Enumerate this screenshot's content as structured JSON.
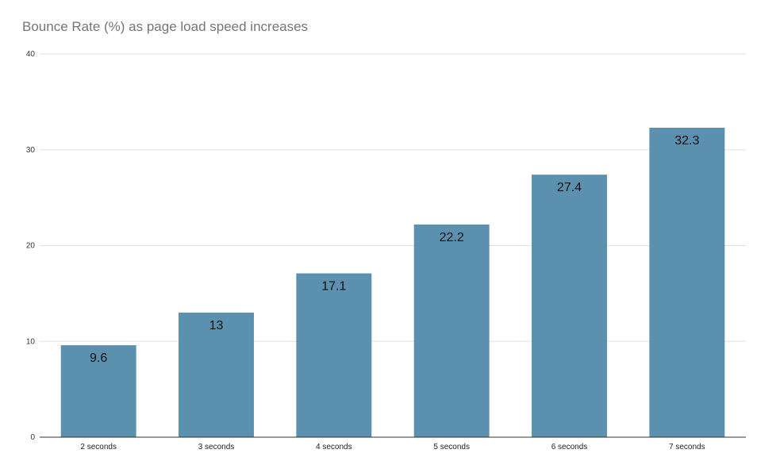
{
  "chart_data": {
    "type": "bar",
    "title": "Bounce Rate (%) as page load speed increases",
    "xlabel": "",
    "ylabel": "",
    "categories": [
      "2 seconds",
      "3 seconds",
      "4 seconds",
      "5 seconds",
      "6 seconds",
      "7 seconds"
    ],
    "values": [
      9.6,
      13,
      17.1,
      22.2,
      27.4,
      32.3
    ],
    "ylim": [
      0,
      40
    ],
    "yticks": [
      0,
      10,
      20,
      30,
      40
    ],
    "grid": true,
    "legend": "none",
    "bar_color": "#5b90ae",
    "grid_color": "#e0e0e0",
    "axis_color": "#333333"
  }
}
